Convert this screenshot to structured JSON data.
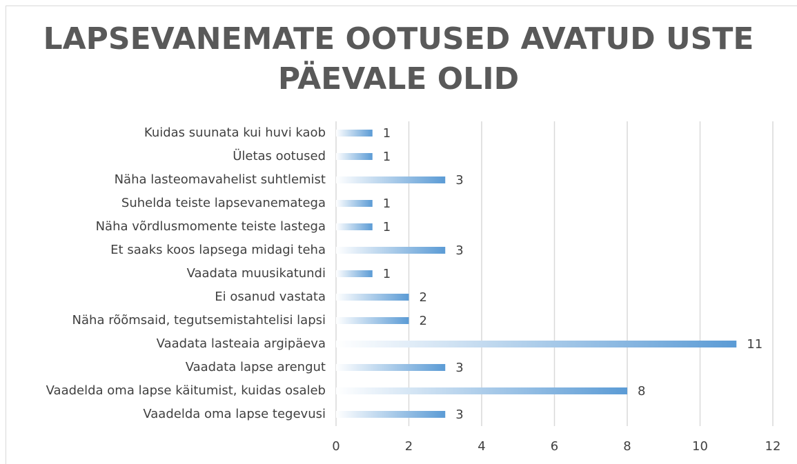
{
  "chart_data": {
    "type": "barh",
    "title": "LAPSEVANEMATE OOTUSED AVATUD USTE PÄEVALE OLID",
    "categories": [
      "Kuidas suunata kui huvi kaob",
      "Ületas ootused",
      "Näha lasteomavahelist suhtlemist",
      "Suhelda teiste lapsevanematega",
      "Näha võrdlusmomente teiste lastega",
      "Et saaks koos lapsega midagi teha",
      "Vaadata muusikatundi",
      "Ei osanud vastata",
      "Näha rõõmsaid, tegutsemistahtelisi lapsi",
      "Vaadata lasteaia argipäeva",
      "Vaadata lapse arengut",
      "Vaadelda oma lapse käitumist, kuidas osaleb",
      "Vaadelda oma lapse tegevusi"
    ],
    "values": [
      1,
      1,
      3,
      1,
      1,
      3,
      1,
      2,
      2,
      11,
      3,
      8,
      3
    ],
    "color": "#5b9bd5",
    "xlim": [
      0,
      12
    ],
    "xticks": [
      0,
      2,
      4,
      6,
      8,
      10,
      12
    ],
    "grid": true
  }
}
